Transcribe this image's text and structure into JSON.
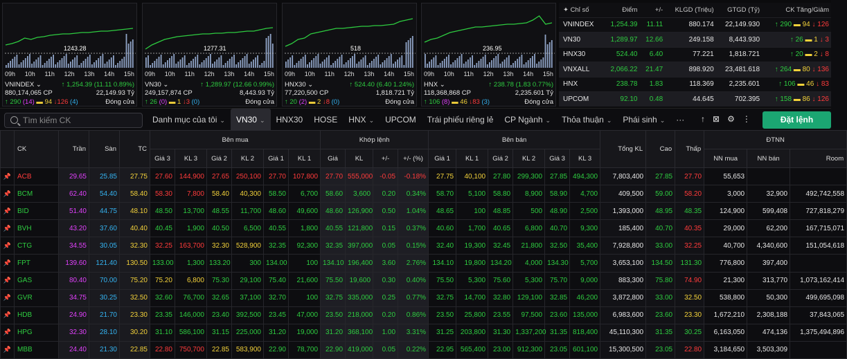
{
  "mini_charts": [
    {
      "name": "VNINDEX",
      "ref": "1243.28",
      "point": "1,254.39",
      "change": "11.11",
      "pct": "0.89%",
      "volume": "880,174,065 CP",
      "value": "22,149.93 Tỷ",
      "up": "290",
      "up_ceil": "14",
      "flat": "94",
      "down": "126",
      "down_floor": "4",
      "status": "Đóng cửa"
    },
    {
      "name": "VN30",
      "ref": "1277.31",
      "point": "1,289.97",
      "change": "12.66",
      "pct": "0.99%",
      "volume": "249,157,874 CP",
      "value": "8,443.93 Tỷ",
      "up": "26",
      "up_ceil": "0",
      "flat": "1",
      "down": "3",
      "down_floor": "0",
      "status": "Đóng cửa"
    },
    {
      "name": "HNX30",
      "ref": "518",
      "point": "524.40",
      "change": "6.40",
      "pct": "1.24%",
      "volume": "77,220,500 CP",
      "value": "1,818.721 Tỷ",
      "up": "20",
      "up_ceil": "2",
      "flat": "2",
      "down": "8",
      "down_floor": "0",
      "status": "Đóng cửa"
    },
    {
      "name": "HNX",
      "ref": "236.95",
      "point": "238.78",
      "change": "1.83",
      "pct": "0.77%",
      "volume": "118,368,868 CP",
      "value": "2,235.601 Tỷ",
      "up": "106",
      "up_ceil": "8",
      "flat": "46",
      "down": "83",
      "down_floor": "3",
      "status": "Đóng cửa"
    }
  ],
  "hours": [
    "09h",
    "10h",
    "11h",
    "12h",
    "13h",
    "14h",
    "15h"
  ],
  "index_table": {
    "headers": [
      "Chỉ số",
      "Điểm",
      "+/-",
      "KLGD (Triệu)",
      "GTGD (Tỷ)",
      "CK Tăng/Giảm"
    ],
    "rows": [
      {
        "name": "VNINDEX",
        "point": "1,254.39",
        "change": "11.11",
        "vol": "880.174",
        "val": "22,149.930",
        "up": "290",
        "flat": "94",
        "down": "126"
      },
      {
        "name": "VN30",
        "point": "1,289.97",
        "change": "12.66",
        "vol": "249.158",
        "val": "8,443.930",
        "up": "26",
        "flat": "1",
        "down": "3"
      },
      {
        "name": "HNX30",
        "point": "524.40",
        "change": "6.40",
        "vol": "77.221",
        "val": "1,818.721",
        "up": "20",
        "flat": "2",
        "down": "8"
      },
      {
        "name": "VNXALL",
        "point": "2,066.22",
        "change": "21.47",
        "vol": "898.920",
        "val": "23,481.618",
        "up": "264",
        "flat": "80",
        "down": "136"
      },
      {
        "name": "HNX",
        "point": "238.78",
        "change": "1.83",
        "vol": "118.369",
        "val": "2,235.601",
        "up": "106",
        "flat": "46",
        "down": "83"
      },
      {
        "name": "UPCOM",
        "point": "92.10",
        "change": "0.48",
        "vol": "44.645",
        "val": "702.395",
        "up": "158",
        "flat": "86",
        "down": "126"
      }
    ]
  },
  "toolbar": {
    "search_placeholder": "Tìm kiếm CK",
    "tabs": [
      "Danh mục của tôi",
      "VN30",
      "HNX30",
      "HOSE",
      "HNX",
      "UPCOM",
      "Trái phiếu riêng lẻ",
      "CP Ngành",
      "Thỏa thuận",
      "Phái sinh",
      "···"
    ],
    "order_label": "Đặt lệnh"
  },
  "board": {
    "headers": {
      "ck": "CK",
      "tran": "Trần",
      "san": "Sàn",
      "tc": "TC",
      "buy": "Bên mua",
      "match": "Khớp lệnh",
      "sell": "Bên bán",
      "total": "Tổng KL",
      "high": "Cao",
      "low": "Thấp",
      "foreign": "ĐTNN",
      "gia3": "Giá 3",
      "kl3": "KL 3",
      "gia2": "Giá 2",
      "kl2": "KL 2",
      "gia1": "Giá 1",
      "kl1": "KL 1",
      "gia": "Giá",
      "kl": "KL",
      "chg": "+/-",
      "pct": "+/- (%)",
      "nn_buy": "NN mua",
      "nn_sell": "NN bán",
      "room": "Room"
    },
    "rows": [
      {
        "ck": "ACB",
        "c": "r",
        "tran": "29.65",
        "san": "25.85",
        "tc": "27.75",
        "b3": "27.60",
        "bk3": "144,900",
        "b3c": "r",
        "b2": "27.65",
        "bk2": "250,100",
        "b2c": "r",
        "b1": "27.70",
        "bk1": "107,800",
        "b1c": "r",
        "m": "27.70",
        "mk": "555,000",
        "mc": "r",
        "chg": "-0.05",
        "pct": "-0.18%",
        "s1": "27.75",
        "sk1": "40,100",
        "s1c": "y",
        "s2": "27.80",
        "sk2": "299,300",
        "s2c": "g",
        "s3": "27.85",
        "sk3": "494,300",
        "s3c": "g",
        "tot": "7,803,400",
        "hi": "27.85",
        "hic": "g",
        "lo": "27.70",
        "loc": "r",
        "nb": "55,653",
        "ns": "",
        "room": ""
      },
      {
        "ck": "BCM",
        "c": "g",
        "tran": "62.40",
        "san": "54.40",
        "tc": "58.40",
        "b3": "58.30",
        "bk3": "7,800",
        "b3c": "r",
        "b2": "58.40",
        "bk2": "40,300",
        "b2c": "y",
        "b1": "58.50",
        "bk1": "6,700",
        "b1c": "g",
        "m": "58.60",
        "mk": "3,600",
        "mc": "g",
        "chg": "0.20",
        "pct": "0.34%",
        "s1": "58.70",
        "sk1": "5,100",
        "s1c": "g",
        "s2": "58.80",
        "sk2": "8,900",
        "s2c": "g",
        "s3": "58.90",
        "sk3": "4,700",
        "s3c": "g",
        "tot": "409,500",
        "hi": "59.00",
        "hic": "g",
        "lo": "58.20",
        "loc": "r",
        "nb": "3,000",
        "ns": "32,900",
        "room": "492,742,558"
      },
      {
        "ck": "BID",
        "c": "g",
        "tran": "51.40",
        "san": "44.75",
        "tc": "48.10",
        "b3": "48.50",
        "bk3": "13,700",
        "b3c": "g",
        "b2": "48.55",
        "bk2": "11,700",
        "b2c": "g",
        "b1": "48.60",
        "bk1": "49,600",
        "b1c": "g",
        "m": "48.60",
        "mk": "126,900",
        "mc": "g",
        "chg": "0.50",
        "pct": "1.04%",
        "s1": "48.65",
        "sk1": "100",
        "s1c": "g",
        "s2": "48.85",
        "sk2": "500",
        "s2c": "g",
        "s3": "48.90",
        "sk3": "2,500",
        "s3c": "g",
        "tot": "1,393,000",
        "hi": "48.95",
        "hic": "g",
        "lo": "48.35",
        "loc": "g",
        "nb": "124,900",
        "ns": "599,408",
        "room": "727,818,279"
      },
      {
        "ck": "BVH",
        "c": "g",
        "tran": "43.20",
        "san": "37.60",
        "tc": "40.40",
        "b3": "40.45",
        "bk3": "1,900",
        "b3c": "g",
        "b2": "40.50",
        "bk2": "6,500",
        "b2c": "g",
        "b1": "40.55",
        "bk1": "1,800",
        "b1c": "g",
        "m": "40.55",
        "mk": "121,800",
        "mc": "g",
        "chg": "0.15",
        "pct": "0.37%",
        "s1": "40.60",
        "sk1": "1,700",
        "s1c": "g",
        "s2": "40.65",
        "sk2": "6,800",
        "s2c": "g",
        "s3": "40.70",
        "sk3": "9,300",
        "s3c": "g",
        "tot": "185,400",
        "hi": "40.70",
        "hic": "g",
        "lo": "40.35",
        "loc": "r",
        "nb": "29,000",
        "ns": "62,200",
        "room": "167,715,071"
      },
      {
        "ck": "CTG",
        "c": "g",
        "tran": "34.55",
        "san": "30.05",
        "tc": "32.30",
        "b3": "32.25",
        "bk3": "163,700",
        "b3c": "r",
        "b2": "32.30",
        "bk2": "528,900",
        "b2c": "y",
        "b1": "32.35",
        "bk1": "92,300",
        "b1c": "g",
        "m": "32.35",
        "mk": "397,000",
        "mc": "g",
        "chg": "0.05",
        "pct": "0.15%",
        "s1": "32.40",
        "sk1": "19,300",
        "s1c": "g",
        "s2": "32.45",
        "sk2": "21,800",
        "s2c": "g",
        "s3": "32.50",
        "sk3": "35,400",
        "s3c": "g",
        "tot": "7,928,800",
        "hi": "33.00",
        "hic": "g",
        "lo": "32.25",
        "loc": "r",
        "nb": "40,700",
        "ns": "4,340,600",
        "room": "151,054,618"
      },
      {
        "ck": "FPT",
        "c": "g",
        "tran": "139.60",
        "san": "121.40",
        "tc": "130.50",
        "b3": "133.00",
        "bk3": "1,300",
        "b3c": "g",
        "b2": "133.20",
        "bk2": "300",
        "b2c": "g",
        "b1": "134.00",
        "bk1": "100",
        "b1c": "g",
        "m": "134.10",
        "mk": "196,400",
        "mc": "g",
        "chg": "3.60",
        "pct": "2.76%",
        "s1": "134.10",
        "sk1": "19,800",
        "s1c": "g",
        "s2": "134.20",
        "sk2": "4,000",
        "s2c": "g",
        "s3": "134.30",
        "sk3": "5,700",
        "s3c": "g",
        "tot": "3,653,100",
        "hi": "134.50",
        "hic": "g",
        "lo": "131.30",
        "loc": "g",
        "nb": "776,800",
        "ns": "397,400",
        "room": ""
      },
      {
        "ck": "GAS",
        "c": "g",
        "tran": "80.40",
        "san": "70.00",
        "tc": "75.20",
        "b3": "75.20",
        "bk3": "6,800",
        "b3c": "y",
        "b2": "75.30",
        "bk2": "29,100",
        "b2c": "g",
        "b1": "75.40",
        "bk1": "21,600",
        "b1c": "g",
        "m": "75.50",
        "mk": "19,600",
        "mc": "g",
        "chg": "0.30",
        "pct": "0.40%",
        "s1": "75.50",
        "sk1": "5,300",
        "s1c": "g",
        "s2": "75.60",
        "sk2": "5,300",
        "s2c": "g",
        "s3": "75.70",
        "sk3": "9,000",
        "s3c": "g",
        "tot": "883,300",
        "hi": "75.80",
        "hic": "g",
        "lo": "74.90",
        "loc": "r",
        "nb": "21,300",
        "ns": "313,770",
        "room": "1,073,162,414"
      },
      {
        "ck": "GVR",
        "c": "g",
        "tran": "34.75",
        "san": "30.25",
        "tc": "32.50",
        "b3": "32.60",
        "bk3": "76,700",
        "b3c": "g",
        "b2": "32.65",
        "bk2": "37,100",
        "b2c": "g",
        "b1": "32.70",
        "bk1": "100",
        "b1c": "g",
        "m": "32.75",
        "mk": "335,000",
        "mc": "g",
        "chg": "0.25",
        "pct": "0.77%",
        "s1": "32.75",
        "sk1": "14,700",
        "s1c": "g",
        "s2": "32.80",
        "sk2": "129,100",
        "s2c": "g",
        "s3": "32.85",
        "sk3": "46,200",
        "s3c": "g",
        "tot": "3,872,800",
        "hi": "33.00",
        "hic": "g",
        "lo": "32.50",
        "loc": "y",
        "nb": "538,800",
        "ns": "50,300",
        "room": "499,695,098"
      },
      {
        "ck": "HDB",
        "c": "g",
        "tran": "24.90",
        "san": "21.70",
        "tc": "23.30",
        "b3": "23.35",
        "bk3": "146,000",
        "b3c": "g",
        "b2": "23.40",
        "bk2": "392,500",
        "b2c": "g",
        "b1": "23.45",
        "bk1": "47,000",
        "b1c": "g",
        "m": "23.50",
        "mk": "218,000",
        "mc": "g",
        "chg": "0.20",
        "pct": "0.86%",
        "s1": "23.50",
        "sk1": "25,800",
        "s1c": "g",
        "s2": "23.55",
        "sk2": "97,500",
        "s2c": "g",
        "s3": "23.60",
        "sk3": "135,000",
        "s3c": "g",
        "tot": "6,983,600",
        "hi": "23.60",
        "hic": "g",
        "lo": "23.30",
        "loc": "y",
        "nb": "1,672,210",
        "ns": "2,308,188",
        "room": "37,843,065"
      },
      {
        "ck": "HPG",
        "c": "g",
        "tran": "32.30",
        "san": "28.10",
        "tc": "30.20",
        "b3": "31.10",
        "bk3": "586,100",
        "b3c": "g",
        "b2": "31.15",
        "bk2": "225,000",
        "b2c": "g",
        "b1": "31.20",
        "bk1": "19,000",
        "b1c": "g",
        "m": "31.20",
        "mk": "368,100",
        "mc": "g",
        "chg": "1.00",
        "pct": "3.31%",
        "s1": "31.25",
        "sk1": "203,800",
        "s1c": "g",
        "s2": "31.30",
        "sk2": "1,337,200",
        "s2c": "g",
        "s3": "31.35",
        "sk3": "818,400",
        "s3c": "g",
        "tot": "45,110,300",
        "hi": "31.35",
        "hic": "g",
        "lo": "30.25",
        "loc": "g",
        "nb": "6,163,050",
        "ns": "474,136",
        "room": "1,375,494,896"
      },
      {
        "ck": "MBB",
        "c": "g",
        "tran": "24.40",
        "san": "21.30",
        "tc": "22.85",
        "b3": "22.80",
        "bk3": "750,700",
        "b3c": "r",
        "b2": "22.85",
        "bk2": "583,900",
        "b2c": "y",
        "b1": "22.90",
        "bk1": "78,700",
        "b1c": "g",
        "m": "22.90",
        "mk": "419,000",
        "mc": "g",
        "chg": "0.05",
        "pct": "0.22%",
        "s1": "22.95",
        "sk1": "565,400",
        "s1c": "g",
        "s2": "23.00",
        "sk2": "912,300",
        "s2c": "g",
        "s3": "23.05",
        "sk3": "601,100",
        "s3c": "g",
        "tot": "15,300,500",
        "hi": "23.05",
        "hic": "g",
        "lo": "22.80",
        "loc": "r",
        "nb": "3,184,650",
        "ns": "3,503,309",
        "room": ""
      }
    ]
  }
}
